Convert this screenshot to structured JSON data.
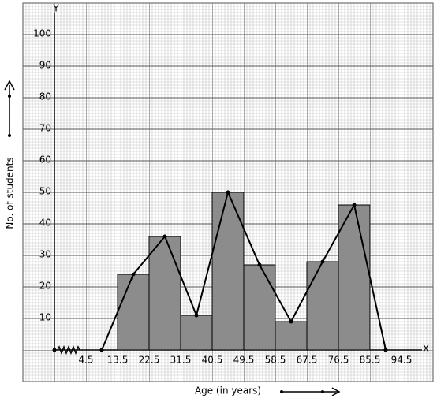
{
  "chart_data": {
    "type": "histogram",
    "x_label": "Age (in years)",
    "y_label": "No. of students",
    "x_axis_name": "X",
    "y_axis_name": "Y",
    "bins": [
      13.5,
      22.5,
      31.5,
      40.5,
      49.5,
      58.5,
      67.5,
      76.5,
      85.5
    ],
    "values": [
      24,
      36,
      11,
      50,
      27,
      9,
      28,
      46
    ],
    "color": "#8c8c8c",
    "polygon": {
      "x": [
        9,
        18,
        27,
        36,
        45,
        54,
        63,
        72,
        81,
        90
      ],
      "values": [
        0,
        24,
        36,
        11,
        50,
        27,
        9,
        28,
        46,
        0
      ],
      "color": "#000000"
    },
    "xlim": [
      -4.5,
      99
    ],
    "ylim": [
      0,
      108
    ],
    "xticks": [
      4.5,
      13.5,
      22.5,
      31.5,
      40.5,
      49.5,
      58.5,
      67.5,
      76.5,
      85.5,
      94.5
    ],
    "yticks": [
      10,
      20,
      30,
      40,
      50,
      60,
      70,
      80,
      90,
      100
    ],
    "grid": true
  }
}
